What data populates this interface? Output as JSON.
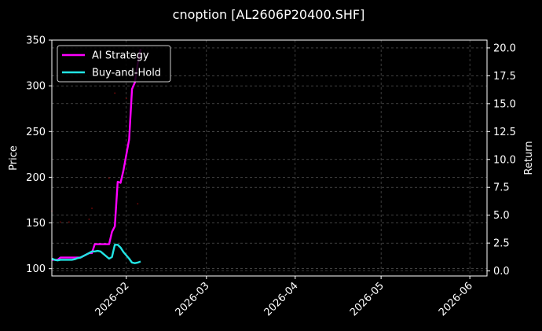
{
  "chart_data": {
    "type": "line",
    "title": "cnoption [AL2606P20400.SHF]",
    "xlabel": "",
    "ylabel": "Price",
    "y2label": "Return",
    "x_range": [
      "2026-01-06",
      "2026-06-07"
    ],
    "ylim": [
      92,
      350
    ],
    "y2lim": [
      -0.45,
      20.7
    ],
    "grid": true,
    "legend_position": "top-left",
    "x_ticks": [
      "2026-02",
      "2026-03",
      "2026-04",
      "2026-05",
      "2026-06"
    ],
    "y_ticks": [
      100,
      150,
      200,
      250,
      300,
      350
    ],
    "y2_ticks": [
      0.0,
      2.5,
      5.0,
      7.5,
      10.0,
      12.5,
      15.0,
      17.5,
      20.0
    ],
    "series": [
      {
        "name": "AI Strategy",
        "axis": "right",
        "color": "#ff00ff",
        "points": [
          [
            "2026-01-06",
            1.0
          ],
          [
            "2026-01-07",
            1.0
          ],
          [
            "2026-01-08",
            1.0
          ],
          [
            "2026-01-09",
            1.2
          ],
          [
            "2026-01-12",
            1.2
          ],
          [
            "2026-01-13",
            1.2
          ],
          [
            "2026-01-14",
            1.2
          ],
          [
            "2026-01-15",
            1.2
          ],
          [
            "2026-01-16",
            1.2
          ],
          [
            "2026-01-19",
            1.6
          ],
          [
            "2026-01-20",
            1.6
          ],
          [
            "2026-01-21",
            2.4
          ],
          [
            "2026-01-22",
            2.4
          ],
          [
            "2026-01-23",
            2.4
          ],
          [
            "2026-01-26",
            2.4
          ],
          [
            "2026-01-27",
            3.5
          ],
          [
            "2026-01-28",
            4.0
          ],
          [
            "2026-01-29",
            8.0
          ],
          [
            "2026-01-30",
            7.9
          ],
          [
            "2026-01-31",
            9.0
          ],
          [
            "2026-02-02",
            11.8
          ],
          [
            "2026-02-03",
            16.3
          ],
          [
            "2026-02-04",
            16.9
          ],
          [
            "2026-02-05",
            18.6
          ],
          [
            "2026-02-06",
            19.9
          ]
        ]
      },
      {
        "name": "Buy-and-Hold",
        "axis": "right",
        "color": "#22e5e5",
        "points": [
          [
            "2026-01-06",
            1.1
          ],
          [
            "2026-01-07",
            1.0
          ],
          [
            "2026-01-08",
            0.95
          ],
          [
            "2026-01-09",
            1.0
          ],
          [
            "2026-01-12",
            1.0
          ],
          [
            "2026-01-13",
            1.0
          ],
          [
            "2026-01-14",
            1.05
          ],
          [
            "2026-01-15",
            1.15
          ],
          [
            "2026-01-16",
            1.2
          ],
          [
            "2026-01-19",
            1.6
          ],
          [
            "2026-01-20",
            1.75
          ],
          [
            "2026-01-21",
            1.75
          ],
          [
            "2026-01-22",
            1.8
          ],
          [
            "2026-01-23",
            1.75
          ],
          [
            "2026-01-26",
            1.1
          ],
          [
            "2026-01-27",
            1.25
          ],
          [
            "2026-01-28",
            2.35
          ],
          [
            "2026-01-29",
            2.35
          ],
          [
            "2026-01-30",
            2.1
          ],
          [
            "2026-01-31",
            1.7
          ],
          [
            "2026-02-02",
            1.1
          ],
          [
            "2026-02-03",
            0.75
          ],
          [
            "2026-02-04",
            0.7
          ],
          [
            "2026-02-05",
            0.75
          ],
          [
            "2026-02-06",
            0.85
          ]
        ]
      },
      {
        "name": "",
        "type": "scatter",
        "axis": "left",
        "color": "#7a0a0a",
        "points": [
          [
            "2026-01-06",
            163
          ],
          [
            "2026-01-09",
            151
          ],
          [
            "2026-01-12",
            151
          ],
          [
            "2026-01-19",
            154
          ],
          [
            "2026-01-20",
            166
          ],
          [
            "2026-01-26",
            199
          ],
          [
            "2026-01-28",
            292
          ],
          [
            "2026-02-01",
            286
          ],
          [
            "2026-02-05",
            171
          ]
        ]
      }
    ]
  }
}
